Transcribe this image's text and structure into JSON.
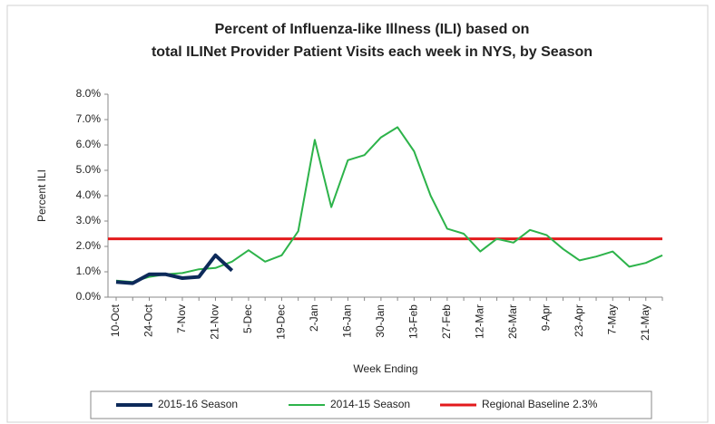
{
  "chart_data": {
    "type": "line",
    "title": [
      "Percent of Influenza-like Illness (ILI) based on",
      "total ILINet Provider Patient Visits each week in NYS, by Season"
    ],
    "x_label": "Week Ending",
    "y_label": "Percent ILI",
    "categories": [
      "10-Oct",
      null,
      "24-Oct",
      null,
      "7-Nov",
      null,
      "21-Nov",
      null,
      "5-Dec",
      null,
      "19-Dec",
      null,
      "2-Jan",
      null,
      "16-Jan",
      null,
      "30-Jan",
      null,
      "13-Feb",
      null,
      "27-Feb",
      null,
      "12-Mar",
      null,
      "26-Mar",
      null,
      "9-Apr",
      null,
      "23-Apr",
      null,
      "7-May",
      null,
      "21-May",
      null
    ],
    "series": [
      {
        "name": "2015-16 Season",
        "color": "#0d2a5a",
        "width": 4,
        "values": [
          0.6,
          0.55,
          0.9,
          0.9,
          0.75,
          0.8,
          1.65,
          1.05,
          null,
          null,
          null,
          null,
          null,
          null,
          null,
          null,
          null,
          null,
          null,
          null,
          null,
          null,
          null,
          null,
          null,
          null,
          null,
          null,
          null,
          null,
          null,
          null,
          null,
          null
        ]
      },
      {
        "name": "2014-15 Season",
        "color": "#2db34a",
        "width": 2,
        "values": [
          0.65,
          0.6,
          0.8,
          0.9,
          0.95,
          1.1,
          1.15,
          1.4,
          1.85,
          1.4,
          1.65,
          2.6,
          6.2,
          3.55,
          5.4,
          5.6,
          6.3,
          6.7,
          5.75,
          4.0,
          2.7,
          2.5,
          1.8,
          2.3,
          2.15,
          2.65,
          2.45,
          1.9,
          1.45,
          1.6,
          1.8,
          1.2,
          1.35,
          1.65
        ]
      }
    ],
    "baseline": {
      "name": "Regional Baseline 2.3%",
      "value": 2.3,
      "color": "#e31a1c"
    },
    "ylim": [
      0,
      8
    ],
    "yticks": [
      {
        "value": 0,
        "label": "0.0%"
      },
      {
        "value": 1,
        "label": "1.0%"
      },
      {
        "value": 2,
        "label": "2.0%"
      },
      {
        "value": 3,
        "label": "3.0%"
      },
      {
        "value": 4,
        "label": "4.0%"
      },
      {
        "value": 5,
        "label": "5.0%"
      },
      {
        "value": 6,
        "label": "6.0%"
      },
      {
        "value": 7,
        "label": "7.0%"
      },
      {
        "value": 8,
        "label": "8.0%"
      }
    ]
  }
}
